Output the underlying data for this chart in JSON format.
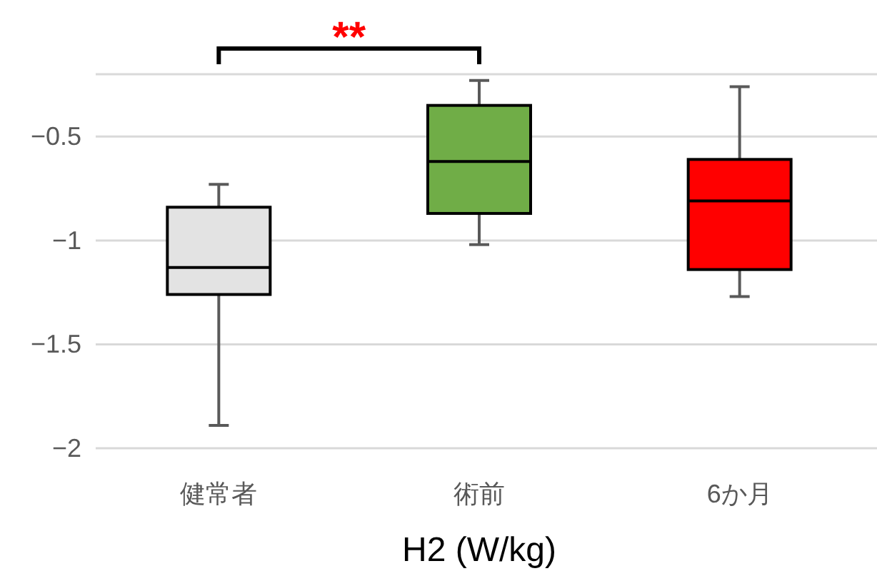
{
  "chart_data": {
    "type": "box",
    "categories": [
      "健常者",
      "術前",
      "6か月"
    ],
    "boxes": [
      {
        "low": -1.89,
        "q1": -1.26,
        "median": -1.13,
        "q3": -0.84,
        "high": -0.73
      },
      {
        "low": -1.02,
        "q1": -0.87,
        "median": -0.62,
        "q3": -0.35,
        "high": -0.23
      },
      {
        "low": -1.27,
        "q1": -1.14,
        "median": -0.81,
        "q3": -0.61,
        "high": -0.26
      }
    ],
    "colors": [
      "#e3e3e3",
      "#70ad47",
      "#ff0000"
    ],
    "xlabel": "H2 (W/kg)",
    "ylim": [
      -2,
      -0.2
    ],
    "yticks": [
      -2,
      -1.5,
      -1,
      -0.5,
      {
        "value": -0.2,
        "label": null
      }
    ],
    "grid": "y",
    "annotations": [
      "**"
    ]
  }
}
